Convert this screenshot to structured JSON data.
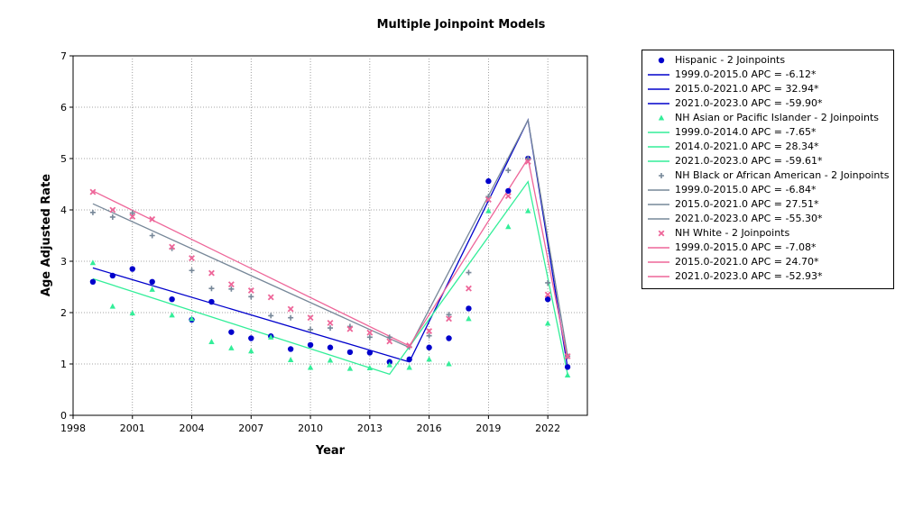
{
  "chart_data": {
    "type": "scatter",
    "title": "Multiple Joinpoint Models",
    "xlabel": "Year",
    "ylabel": "Age Adjusted Rate",
    "xlim": [
      1998,
      2024
    ],
    "ylim": [
      0,
      7
    ],
    "xticks": [
      1998,
      2001,
      2004,
      2007,
      2010,
      2013,
      2016,
      2019,
      2022
    ],
    "yticks": [
      0,
      1,
      2,
      3,
      4,
      5,
      6,
      7
    ],
    "grid": true,
    "legend_position": "right",
    "series": [
      {
        "name": "Hispanic - 2 Joinpoints",
        "marker": "circle",
        "color": "#0000cc",
        "x": [
          1999,
          2000,
          2001,
          2002,
          2003,
          2004,
          2005,
          2006,
          2007,
          2008,
          2009,
          2010,
          2011,
          2012,
          2013,
          2014,
          2015,
          2016,
          2017,
          2018,
          2019,
          2020,
          2021,
          2022,
          2023
        ],
        "y": [
          2.6,
          2.72,
          2.85,
          2.6,
          2.26,
          1.86,
          2.21,
          1.62,
          1.5,
          1.54,
          1.29,
          1.37,
          1.32,
          1.23,
          1.22,
          1.04,
          1.09,
          1.32,
          1.5,
          2.08,
          4.56,
          4.37,
          5.0,
          2.26,
          0.94
        ],
        "fit": {
          "x": [
            1999,
            2015,
            2021,
            2023
          ],
          "y": [
            2.87,
            1.04,
            5.75,
            0.93
          ]
        },
        "segments": [
          "1999.0-2015.0 APC  =   -6.12*",
          "2015.0-2021.0 APC  =  32.94*",
          "2021.0-2023.0 APC  = -59.90*"
        ]
      },
      {
        "name": "NH Asian or Pacific Islander - 2 Joinpoints",
        "marker": "triangle",
        "color": "#33ee99",
        "x": [
          1999,
          2000,
          2001,
          2002,
          2003,
          2004,
          2005,
          2006,
          2007,
          2008,
          2009,
          2010,
          2011,
          2012,
          2013,
          2014,
          2015,
          2016,
          2017,
          2018,
          2019,
          2020,
          2021,
          2022,
          2023
        ],
        "y": [
          2.97,
          2.12,
          1.99,
          2.45,
          1.95,
          1.88,
          1.43,
          1.31,
          1.25,
          1.52,
          1.08,
          0.93,
          1.07,
          0.91,
          0.92,
          0.98,
          0.93,
          1.09,
          1.0,
          1.88,
          3.98,
          3.67,
          3.98,
          1.79,
          0.78
        ],
        "fit": {
          "x": [
            1999,
            2014,
            2021,
            2023
          ],
          "y": [
            2.66,
            0.8,
            4.55,
            0.8
          ]
        },
        "segments": [
          "1999.0-2014.0 APC  =   -7.65*",
          "2014.0-2021.0 APC  =  28.34*",
          "2021.0-2023.0 APC  = -59.61*"
        ]
      },
      {
        "name": "NH Black or African American - 2 Joinpoints",
        "marker": "plus",
        "color": "#778899",
        "x": [
          1999,
          2000,
          2001,
          2002,
          2003,
          2004,
          2005,
          2006,
          2007,
          2008,
          2009,
          2010,
          2011,
          2012,
          2013,
          2014,
          2015,
          2016,
          2017,
          2018,
          2019,
          2020,
          2021,
          2022,
          2023
        ],
        "y": [
          3.95,
          3.86,
          3.94,
          3.5,
          3.25,
          2.82,
          2.47,
          2.46,
          2.31,
          1.94,
          1.9,
          1.67,
          1.7,
          1.73,
          1.52,
          1.52,
          1.33,
          1.55,
          1.96,
          2.78,
          4.26,
          4.77,
          5.0,
          2.58,
          1.15
        ],
        "fit": {
          "x": [
            1999,
            2015,
            2021,
            2023
          ],
          "y": [
            4.12,
            1.32,
            5.75,
            1.16
          ]
        },
        "segments": [
          "1999.0-2015.0 APC  =   -6.84*",
          "2015.0-2021.0 APC  =  27.51*",
          "2021.0-2023.0 APC  = -55.30*"
        ]
      },
      {
        "name": "NH White - 2 Joinpoints",
        "marker": "x",
        "color": "#ee6699",
        "x": [
          1999,
          2000,
          2001,
          2002,
          2003,
          2004,
          2005,
          2006,
          2007,
          2008,
          2009,
          2010,
          2011,
          2012,
          2013,
          2014,
          2015,
          2016,
          2017,
          2018,
          2019,
          2020,
          2021,
          2022,
          2023
        ],
        "y": [
          4.35,
          4.0,
          3.87,
          3.82,
          3.28,
          3.06,
          2.77,
          2.55,
          2.43,
          2.3,
          2.07,
          1.9,
          1.8,
          1.68,
          1.61,
          1.44,
          1.36,
          1.64,
          1.88,
          2.47,
          4.2,
          4.27,
          4.94,
          2.35,
          1.15
        ],
        "fit": {
          "x": [
            1999,
            2015,
            2021,
            2023
          ],
          "y": [
            4.37,
            1.35,
            5.0,
            1.09
          ]
        },
        "segments": [
          "1999.0-2015.0 APC  =   -7.08*",
          "2015.0-2021.0 APC  =  24.70*",
          "2021.0-2023.0 APC  = -52.93*"
        ]
      }
    ]
  }
}
